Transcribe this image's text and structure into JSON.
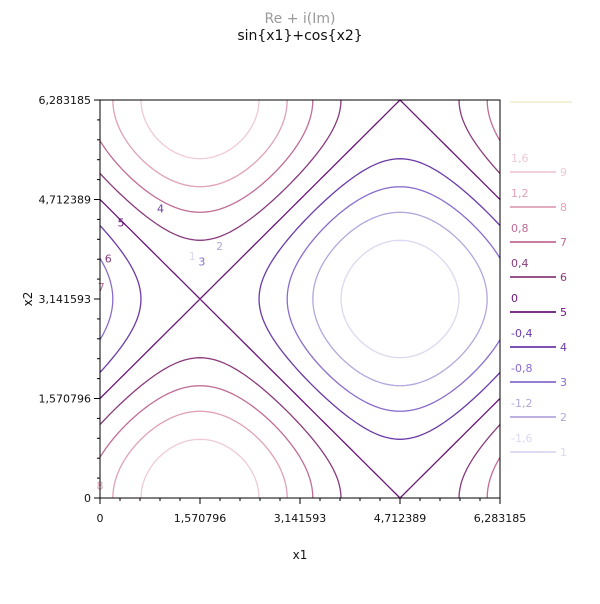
{
  "chart_data": {
    "type": "contour",
    "title": "Re + i(Im)",
    "subtitle": "sin{x1}+cos{x2}",
    "xlabel": "x1",
    "ylabel": "x2",
    "xlim": [
      0,
      6.283185
    ],
    "ylim": [
      0,
      6.283185
    ],
    "x_ticks": [
      "0",
      "1,570796",
      "3,141593",
      "4,712389",
      "6,283185"
    ],
    "y_ticks": [
      "0",
      "1,570796",
      "3,141593",
      "4,712389",
      "6,283185"
    ],
    "function": "sin(x1) + cos(x2)",
    "levels": [
      {
        "index": "1",
        "value": -1.6,
        "label": "-1,6",
        "color": "#dcd8f0"
      },
      {
        "index": "2",
        "value": -1.2,
        "label": "-1,2",
        "color": "#b3a6dc"
      },
      {
        "index": "3",
        "value": -0.8,
        "label": "-0,8",
        "color": "#8a6ccc"
      },
      {
        "index": "4",
        "value": -0.4,
        "label": "-0,4",
        "color": "#6a3aa8"
      },
      {
        "index": "5",
        "value": 0.0,
        "label": "0",
        "color": "#6a1478"
      },
      {
        "index": "6",
        "value": 0.4,
        "label": "0,4",
        "color": "#8a3a7c"
      },
      {
        "index": "7",
        "value": 0.8,
        "label": "0,8",
        "color": "#c06c96"
      },
      {
        "index": "8",
        "value": 1.2,
        "label": "1,2",
        "color": "#dfa0b8"
      },
      {
        "index": "9",
        "value": 1.6,
        "label": "1,6",
        "color": "#efcad6"
      }
    ],
    "legend_top": {
      "color": "#f4f1d6"
    },
    "legend_position": "right",
    "grid": false
  }
}
